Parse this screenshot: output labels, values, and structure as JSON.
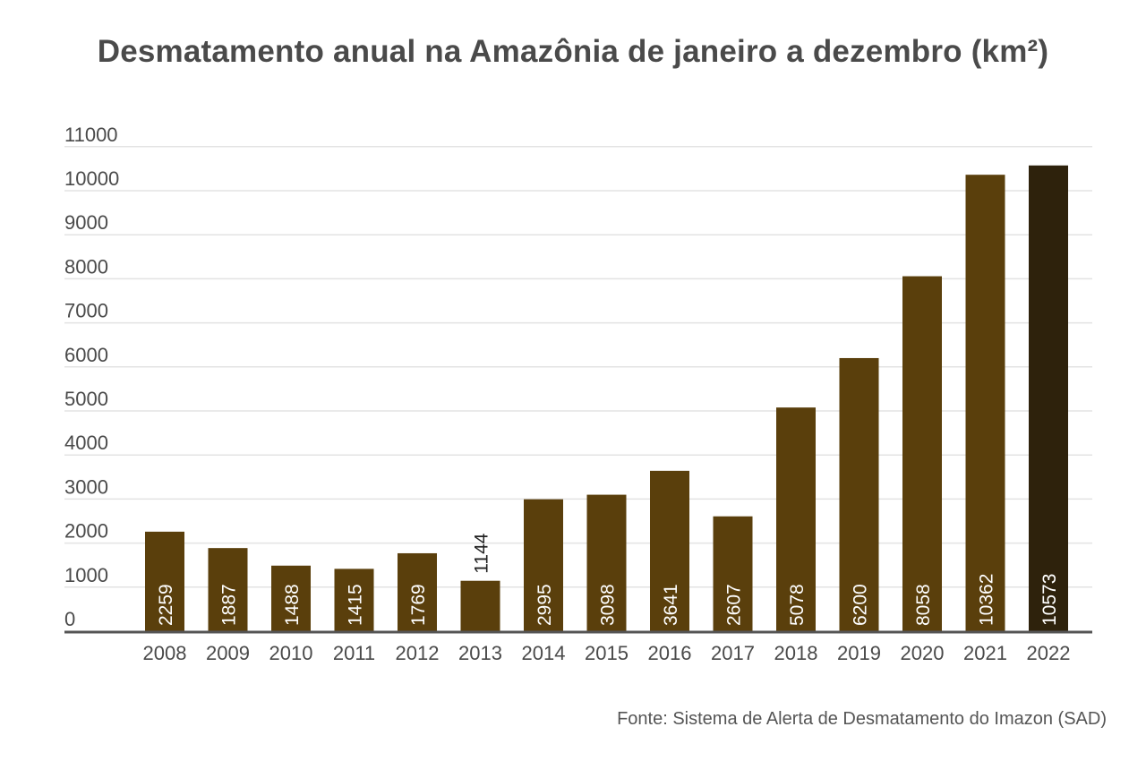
{
  "chart_data": {
    "type": "bar",
    "title": "Desmatamento anual na Amazônia de janeiro a dezembro (km²)",
    "xlabel": "",
    "ylabel": "",
    "ylim": [
      0,
      11000
    ],
    "yticks": [
      0,
      1000,
      2000,
      3000,
      4000,
      5000,
      6000,
      7000,
      8000,
      9000,
      10000,
      11000
    ],
    "grid": true,
    "categories": [
      "2008",
      "2009",
      "2010",
      "2011",
      "2012",
      "2013",
      "2014",
      "2015",
      "2016",
      "2017",
      "2018",
      "2019",
      "2020",
      "2021",
      "2022"
    ],
    "values": [
      2259,
      1887,
      1488,
      1415,
      1769,
      1144,
      2995,
      3098,
      3641,
      2607,
      5078,
      6200,
      8058,
      10362,
      10573
    ],
    "data_labels": [
      "2259",
      "1887",
      "1488",
      "1415",
      "1769",
      "1144",
      "2995",
      "3098",
      "3641",
      "2607",
      "5078",
      "6200",
      "8058",
      "10362",
      "10573"
    ],
    "source": "Fonte: Sistema de Alerta de Desmatamento do Imazon (SAD)"
  },
  "colors": {
    "bar": "#5a3f0c",
    "bar_highlight": "#2e220c",
    "grid": "#e3e3e3",
    "axis": "#555555",
    "tick_text": "#4a4a4a",
    "label_inside": "#ffffff",
    "label_outside": "#222222"
  }
}
